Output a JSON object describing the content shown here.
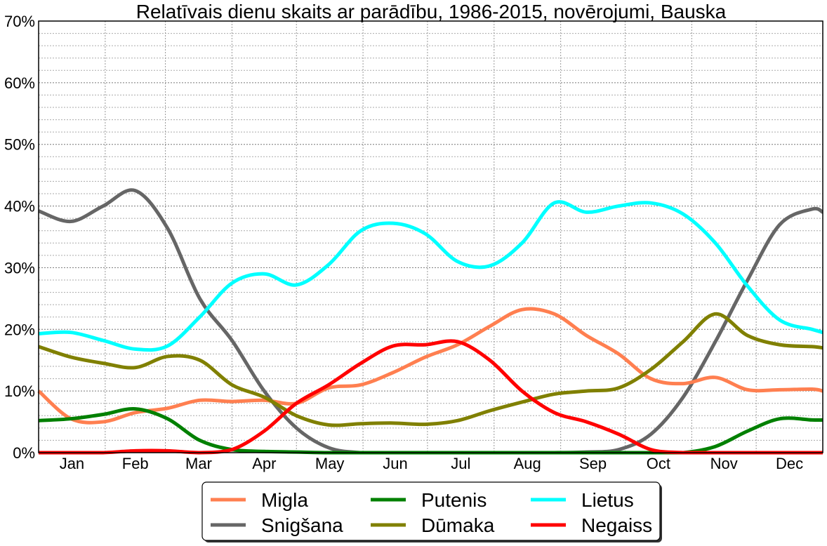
{
  "chart_data": {
    "type": "line",
    "title": "Relatīvais dienu skaits ar parādību, 1986-2015, novērojumi, Bauska",
    "xlabel": "",
    "ylabel": "",
    "x_unit": "day of year",
    "xlim": [
      0,
      365
    ],
    "ylim": [
      0,
      70
    ],
    "yticks": [
      0,
      10,
      20,
      30,
      40,
      50,
      60,
      70
    ],
    "ytick_labels": [
      "0%",
      "10%",
      "20%",
      "30%",
      "40%",
      "50%",
      "60%",
      "70%"
    ],
    "months": [
      "Jan",
      "Feb",
      "Mar",
      "Apr",
      "May",
      "Jun",
      "Jul",
      "Aug",
      "Sep",
      "Oct",
      "Nov",
      "Dec"
    ],
    "grid": true,
    "legend_position": "bottom-center",
    "x": [
      0,
      15,
      30,
      45,
      60,
      75,
      90,
      105,
      120,
      135,
      150,
      165,
      180,
      195,
      210,
      225,
      240,
      255,
      270,
      285,
      300,
      315,
      330,
      345,
      360,
      365
    ],
    "series": [
      {
        "name": "Migla",
        "color": "#ff7f50",
        "values": [
          10,
          5.5,
          5,
          6.5,
          7.2,
          8.5,
          8.3,
          8.5,
          8,
          10.5,
          11,
          13,
          15.5,
          17.5,
          20.5,
          23.2,
          22.5,
          19,
          16,
          12,
          11.2,
          12.2,
          10.2,
          10.2,
          10.3,
          10
        ]
      },
      {
        "name": "Snigšana",
        "color": "#666666",
        "values": [
          39.2,
          37.5,
          40,
          42.5,
          36.4,
          25,
          18.2,
          10,
          4,
          0.8,
          0,
          0,
          0,
          0,
          0,
          0,
          0,
          0.1,
          0.5,
          3,
          9,
          18,
          28,
          37,
          39.5,
          39
        ]
      },
      {
        "name": "Putenis",
        "color": "#008000",
        "values": [
          5.2,
          5.5,
          6.2,
          7.1,
          5.5,
          2,
          0.5,
          0.2,
          0.1,
          0,
          0,
          0,
          0,
          0,
          0,
          0,
          0,
          0,
          0,
          0,
          0,
          1,
          3.5,
          5.5,
          5.3,
          5.3
        ]
      },
      {
        "name": "Dūmaka",
        "color": "#808000",
        "values": [
          17.2,
          15.5,
          14.5,
          13.8,
          15.6,
          15,
          11,
          9,
          6,
          4.5,
          4.7,
          4.8,
          4.6,
          5.2,
          6.8,
          8.2,
          9.5,
          10,
          10.5,
          13.5,
          18,
          22.5,
          19,
          17.5,
          17.2,
          17
        ]
      },
      {
        "name": "Lietus",
        "color": "#00ffff",
        "values": [
          19.3,
          19.5,
          18.2,
          16.8,
          17.3,
          22,
          27.5,
          29,
          27.2,
          30.5,
          36,
          37.2,
          35.5,
          31,
          30.3,
          34,
          40.5,
          39,
          40,
          40.5,
          38.7,
          34,
          27,
          21.5,
          20,
          19.5
        ]
      },
      {
        "name": "Negaiss",
        "color": "#ff0000",
        "values": [
          0,
          0,
          0,
          0.3,
          0.3,
          0,
          0.5,
          3.5,
          8,
          11,
          14.5,
          17.3,
          17.5,
          18,
          15,
          10,
          6.5,
          5,
          3,
          0.5,
          0,
          0,
          0,
          0,
          0,
          0
        ]
      }
    ]
  }
}
